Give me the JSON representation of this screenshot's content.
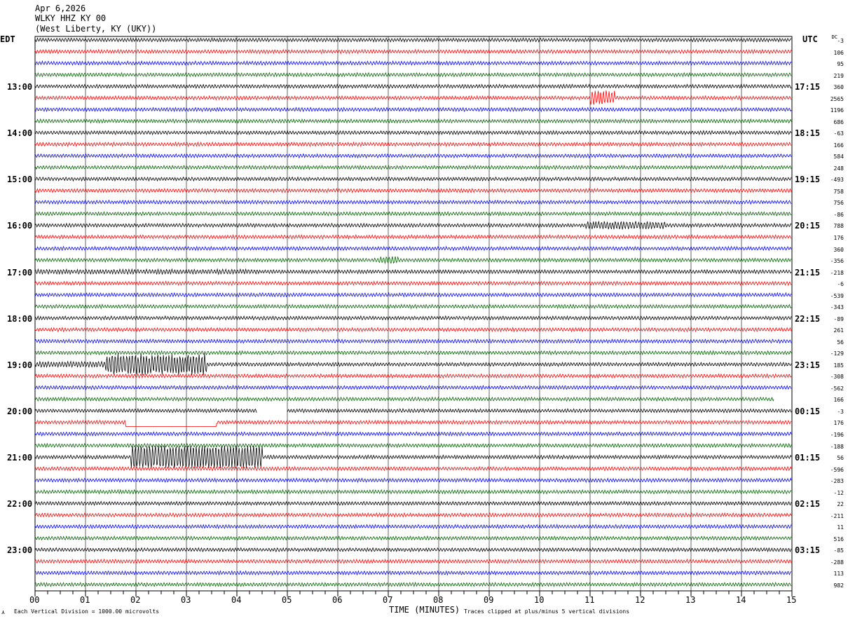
{
  "header": {
    "date": "Apr 6,2026",
    "station": "WLKY HHZ KY 00",
    "location": "(West Liberty, KY (UKY))"
  },
  "left_tz": "EDT",
  "right_tz": "UTC",
  "dc_label": "DC",
  "footer": {
    "scale": "Each Vertical Division = 1000.00 microvolts",
    "xlabel": "TIME (MINUTES)",
    "clip_note": "Traces clipped at plus/minus 5 vertical divisions"
  },
  "chart_data": {
    "type": "line",
    "title": "WLKY HHZ KY 00 helicorder",
    "xlabel": "TIME (MINUTES)",
    "xlim": [
      0,
      15
    ],
    "x_ticks": [
      "00",
      "01",
      "02",
      "03",
      "04",
      "05",
      "06",
      "07",
      "08",
      "09",
      "10",
      "11",
      "12",
      "13",
      "14",
      "15"
    ],
    "rows_per_hour": 4,
    "row_minutes": 15,
    "colors": [
      "#000000",
      "#ff0000",
      "#0000ff",
      "#006400"
    ],
    "left_hour_labels": [
      "13:00",
      "14:00",
      "15:00",
      "16:00",
      "17:00",
      "18:00",
      "19:00",
      "20:00",
      "21:00",
      "22:00",
      "23:00"
    ],
    "right_hour_labels": [
      "17:15",
      "18:15",
      "19:15",
      "20:15",
      "21:15",
      "22:15",
      "23:15",
      "00:15",
      "01:15",
      "02:15",
      "03:15"
    ],
    "first_labeled_row": 4,
    "dc_offsets": [
      -3,
      106,
      95,
      219,
      360,
      2565,
      1196,
      686,
      -63,
      166,
      584,
      248,
      -493,
      758,
      756,
      -86,
      788,
      176,
      360,
      -356,
      -218,
      -6,
      -539,
      -343,
      -89,
      261,
      56,
      -129,
      185,
      -308,
      -562,
      166,
      -3,
      176,
      -196,
      -188,
      56,
      -596,
      -283,
      -12,
      22,
      -211,
      11,
      516,
      -85,
      -288,
      113,
      982
    ],
    "events": [
      {
        "row": 5,
        "start": 11.0,
        "end": 11.5,
        "amp": 4
      },
      {
        "row": 16,
        "start": 10.9,
        "end": 12.5,
        "amp": 2.2
      },
      {
        "row": 19,
        "start": 6.8,
        "end": 7.2,
        "amp": 2
      },
      {
        "row": 20,
        "start": 0.0,
        "end": 4.4,
        "amp": 1.3
      },
      {
        "row": 28,
        "start": 0.0,
        "end": 1.4,
        "amp": 1.6
      },
      {
        "row": 28,
        "start": 1.4,
        "end": 3.4,
        "amp": 6
      },
      {
        "row": 36,
        "start": 1.9,
        "end": 4.5,
        "amp": 8
      }
    ],
    "gaps": [
      {
        "row": 31,
        "start": 14.65,
        "end": 15
      },
      {
        "row": 32,
        "start": 4.4,
        "end": 5.0
      }
    ],
    "flat_segments": [
      {
        "row": 33,
        "start": 1.8,
        "end": 3.6
      }
    ]
  }
}
